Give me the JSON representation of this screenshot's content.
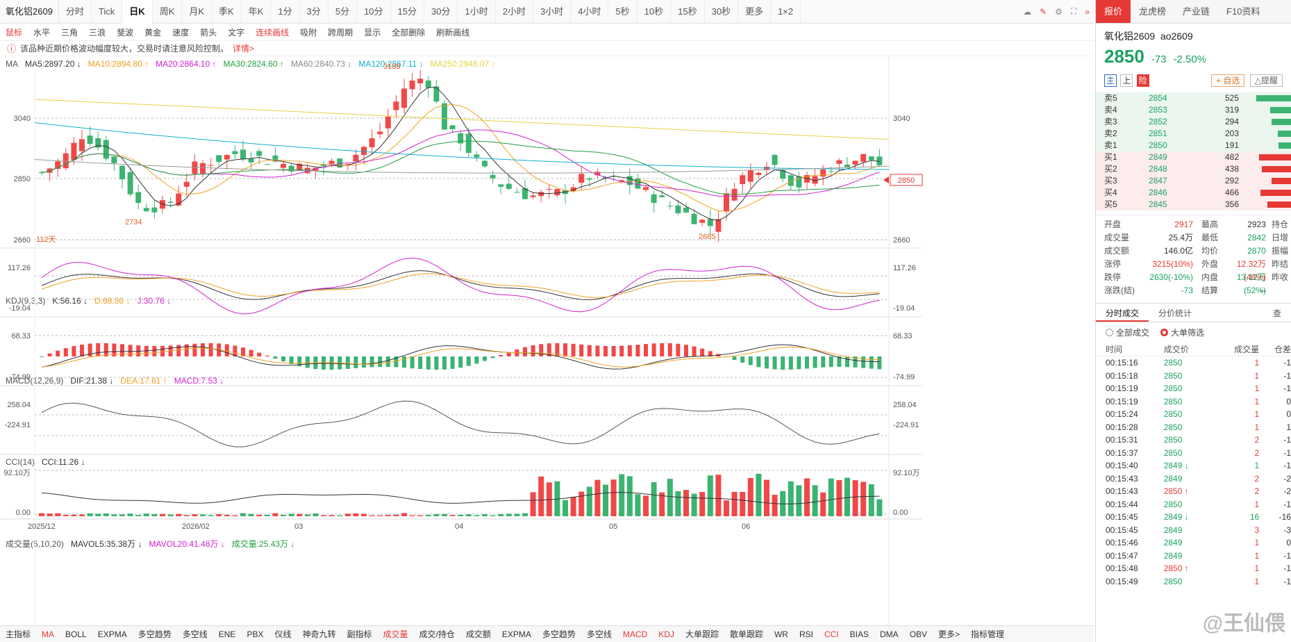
{
  "header": {
    "symbol": "氧化铝2609",
    "period_tabs": [
      "分时",
      "Tick",
      "日K",
      "周K",
      "月K",
      "季K",
      "年K",
      "1分",
      "3分",
      "5分",
      "10分",
      "15分",
      "30分",
      "1小时",
      "2小时",
      "3小时",
      "4小时",
      "5秒",
      "10秒",
      "15秒",
      "30秒",
      "更多",
      "1×2"
    ],
    "active_tab": "日K"
  },
  "draw_tools": [
    "鼠标",
    "水平",
    "三角",
    "三浪",
    "斐波",
    "黄金",
    "速度",
    "箭头",
    "文字",
    "连续画线",
    "吸附",
    "跨周期",
    "显示",
    "全部删除",
    "刷新画线"
  ],
  "warning": {
    "text": "该品种近期价格波动幅度较大，交易时请注意风险控制。",
    "detail": "详情>"
  },
  "ma_legend": {
    "label": "MA",
    "items": [
      {
        "t": "MA5:2897.20 ↓",
        "c": "#333333"
      },
      {
        "t": "MA10:2894.80 ↑",
        "c": "#f0a020"
      },
      {
        "t": "MA20:2864.10 ↑",
        "c": "#d020d0"
      },
      {
        "t": "MA30:2824.60 ↑",
        "c": "#20a040"
      },
      {
        "t": "MA60:2840.73 ↓",
        "c": "#888888"
      },
      {
        "t": "MA120:2867.11 ↓",
        "c": "#10b0d0"
      },
      {
        "t": "MA250:2948.07 ↓",
        "c": "#e8d040"
      }
    ]
  },
  "kdj_legend": {
    "label": "KDJ(9,3,3)",
    "items": [
      {
        "t": "K:56.16 ↓",
        "c": "#333333"
      },
      {
        "t": "D:68.86 ↓",
        "c": "#f0a020"
      },
      {
        "t": "J:30.76 ↓",
        "c": "#d020d0"
      }
    ]
  },
  "macd_legend": {
    "label": "MACD(12,26,9)",
    "items": [
      {
        "t": "DIF:21.38 ↓",
        "c": "#333333"
      },
      {
        "t": "DEA:17.61 ↑",
        "c": "#f0a020"
      },
      {
        "t": "MACD:7.53 ↓",
        "c": "#d020d0"
      }
    ]
  },
  "cci_legend": {
    "label": "CCI(14)",
    "items": [
      {
        "t": "CCI:11.26 ↓",
        "c": "#333333"
      }
    ]
  },
  "vol_legend": {
    "label": "成交量(5,10,20)",
    "items": [
      {
        "t": "MAVOL5:35.38万 ↓",
        "c": "#333333"
      },
      {
        "t": "MAVOL20:41.48万 ↓",
        "c": "#d020d0"
      },
      {
        "t": "成交量:25.43万 ↓",
        "c": "#20a040"
      }
    ]
  },
  "axis": {
    "main_top": "3040",
    "main_bottom": "2660",
    "main_mid": "2850",
    "current_price_tag": "2850",
    "high_label": "3188",
    "low_label1": "2734",
    "low_label2": "2685",
    "days_label": "112天",
    "kdj_top": "117.26",
    "kdj_bottom": "-19.04",
    "macd_top": "68.33",
    "macd_bottom": "-74.99",
    "cci_top": "258.04",
    "cci_bottom": "-224.91",
    "vol_top": "92.10万",
    "vol_bottom": "0.00",
    "dates": [
      "2025/12",
      "2026/02",
      "03",
      "04",
      "05",
      "06"
    ]
  },
  "bottom_tabs": [
    "主指标",
    "MA",
    "BOLL",
    "EXPMA",
    "多空趋势",
    "多空线",
    "ENE",
    "PBX",
    "仪线",
    "神奇九转",
    "副指标",
    "成交量",
    "成交/持仓",
    "成交额",
    "EXPMA",
    "多空趋势",
    "多空线",
    "MACD",
    "KDJ",
    "大单跟踪",
    "散单跟踪",
    "WR",
    "RSI",
    "CCI",
    "BIAS",
    "DMA",
    "OBV",
    "更多>",
    "指标管理"
  ],
  "right": {
    "tabs": [
      "报价",
      "龙虎榜",
      "产业链",
      "F10资料"
    ],
    "title": "氧化铝2609",
    "code": "ao2609",
    "price": "2850",
    "change": "-73",
    "change_pct": "-2.50%",
    "btns": [
      "主",
      "上",
      "险"
    ],
    "add_fav": "+ 自选",
    "alert": "△提醒",
    "sells": [
      [
        "卖5",
        "2854",
        "525"
      ],
      [
        "卖4",
        "2853",
        "319"
      ],
      [
        "卖3",
        "2852",
        "294"
      ],
      [
        "卖2",
        "2851",
        "203"
      ],
      [
        "卖1",
        "2850",
        "191"
      ]
    ],
    "buys": [
      [
        "买1",
        "2849",
        "482"
      ],
      [
        "买2",
        "2848",
        "438"
      ],
      [
        "买3",
        "2847",
        "292"
      ],
      [
        "买4",
        "2846",
        "466"
      ],
      [
        "买5",
        "2845",
        "356"
      ]
    ],
    "stats": [
      [
        "开盘",
        "2917",
        "最高",
        "2923",
        "持仓"
      ],
      [
        "成交量",
        "25.4万",
        "最低",
        "2842",
        "日增"
      ],
      [
        "成交额",
        "146.0亿",
        "均价",
        "2870",
        "振幅"
      ],
      [
        "涨停",
        "3215(10%)",
        "外盘",
        "12.32万(48%)",
        "昨结"
      ],
      [
        "跌停",
        "2630(-10%)",
        "内盘",
        "13.12万(52%)",
        "昨收"
      ],
      [
        "涨跌(结)",
        "-73",
        "结算",
        "--",
        ""
      ]
    ],
    "trade_tabs": [
      "分时成交",
      "分价统计"
    ],
    "query": "查",
    "opt_all": "全部成交",
    "opt_big": "大单筛选",
    "trade_head": [
      "时间",
      "成交价",
      "成交量",
      "仓差"
    ],
    "trades": [
      [
        "00:15:16",
        "2850",
        "1",
        "-1"
      ],
      [
        "00:15:18",
        "2850",
        "1",
        "-1"
      ],
      [
        "00:15:19",
        "2850",
        "1",
        "-1"
      ],
      [
        "00:15:19",
        "2850",
        "1",
        "0"
      ],
      [
        "00:15:24",
        "2850",
        "1",
        "0"
      ],
      [
        "00:15:28",
        "2850",
        "1",
        "1"
      ],
      [
        "00:15:31",
        "2850",
        "2",
        "-1"
      ],
      [
        "00:15:37",
        "2850",
        "2",
        "-1"
      ],
      [
        "00:15:40",
        "2849 ↓",
        "1",
        "-1"
      ],
      [
        "00:15:43",
        "2849",
        "2",
        "-2"
      ],
      [
        "00:15:43",
        "2850 ↑",
        "2",
        "-2"
      ],
      [
        "00:15:44",
        "2850",
        "1",
        "-1"
      ],
      [
        "00:15:45",
        "2849 ↓",
        "16",
        "-16"
      ],
      [
        "00:15:45",
        "2849",
        "3",
        "-3"
      ],
      [
        "00:15:46",
        "2849",
        "1",
        "0"
      ],
      [
        "00:15:47",
        "2849",
        "1",
        "-1"
      ],
      [
        "00:15:48",
        "2850 ↑",
        "1",
        "-1"
      ],
      [
        "00:15:49",
        "2850",
        "1",
        "-1"
      ]
    ]
  },
  "watermark": "@王仙偎"
}
